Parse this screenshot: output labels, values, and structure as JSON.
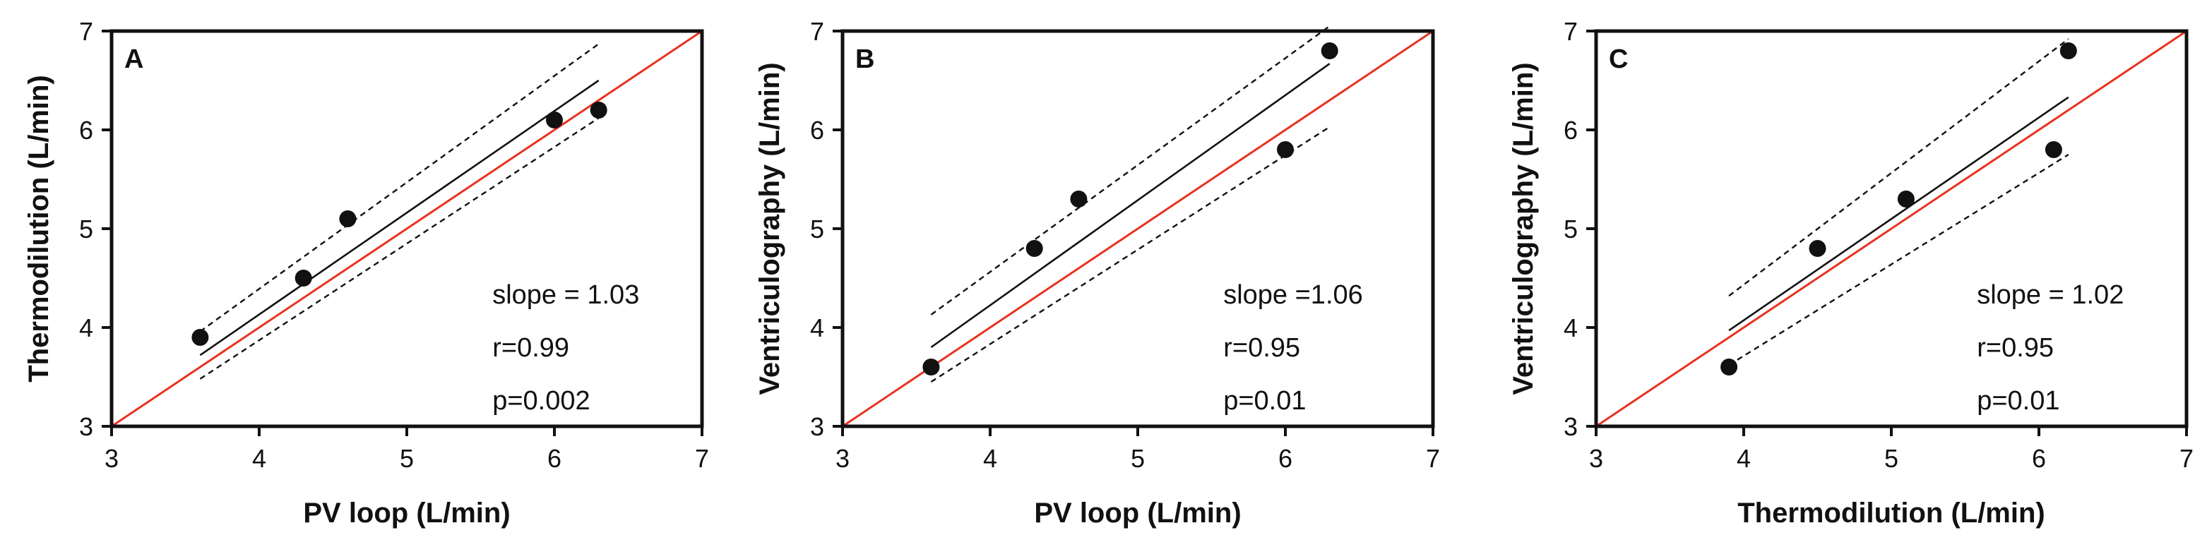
{
  "chart_data": [
    {
      "type": "scatter",
      "panel": "A",
      "xlabel": "PV loop (L/min)",
      "ylabel": "Thermodilution (L/min)",
      "xlim": [
        3,
        7
      ],
      "ylim": [
        3,
        7
      ],
      "xticks": [
        "3",
        "4",
        "5",
        "6",
        "7"
      ],
      "yticks": [
        "3",
        "4",
        "5",
        "6",
        "7"
      ],
      "points": [
        {
          "x": 3.6,
          "y": 3.9
        },
        {
          "x": 4.3,
          "y": 4.5
        },
        {
          "x": 4.6,
          "y": 5.1
        },
        {
          "x": 6.0,
          "y": 6.1
        },
        {
          "x": 6.3,
          "y": 6.2
        }
      ],
      "regression": {
        "x0": 3.6,
        "y0": 3.72,
        "x1": 6.3,
        "y1": 6.5
      },
      "ci_upper": {
        "x0": 3.6,
        "y0": 3.96,
        "x1": 6.3,
        "y1": 6.87
      },
      "ci_lower": {
        "x0": 3.6,
        "y0": 3.48,
        "x1": 6.3,
        "y1": 6.12
      },
      "identity": {
        "x0": 3,
        "y0": 3,
        "x1": 7,
        "y1": 7
      },
      "annotations": [
        "slope = 1.03",
        "r=0.99",
        "p=0.002"
      ]
    },
    {
      "type": "scatter",
      "panel": "B",
      "xlabel": "PV loop (L/min)",
      "ylabel": "Ventriculography (L/min)",
      "xlim": [
        3,
        7
      ],
      "ylim": [
        3,
        7
      ],
      "xticks": [
        "3",
        "4",
        "5",
        "6",
        "7"
      ],
      "yticks": [
        "3",
        "4",
        "5",
        "6",
        "7"
      ],
      "points": [
        {
          "x": 3.6,
          "y": 3.6
        },
        {
          "x": 4.3,
          "y": 4.8
        },
        {
          "x": 4.6,
          "y": 5.3
        },
        {
          "x": 6.0,
          "y": 5.8
        },
        {
          "x": 6.3,
          "y": 6.8
        }
      ],
      "regression": {
        "x0": 3.6,
        "y0": 3.8,
        "x1": 6.3,
        "y1": 6.67
      },
      "ci_upper": {
        "x0": 3.6,
        "y0": 4.13,
        "x1": 6.3,
        "y1": 7.05
      },
      "ci_lower": {
        "x0": 3.6,
        "y0": 3.45,
        "x1": 6.3,
        "y1": 6.03
      },
      "identity": {
        "x0": 3,
        "y0": 3,
        "x1": 7,
        "y1": 7
      },
      "annotations": [
        "slope =1.06",
        "r=0.95",
        "p=0.01"
      ]
    },
    {
      "type": "scatter",
      "panel": "C",
      "xlabel": "Thermodilution (L/min)",
      "ylabel": "Ventriculography (L/min)",
      "xlim": [
        3,
        7
      ],
      "ylim": [
        3,
        7
      ],
      "xticks": [
        "3",
        "4",
        "5",
        "6",
        "7"
      ],
      "yticks": [
        "3",
        "4",
        "5",
        "6",
        "7"
      ],
      "points": [
        {
          "x": 3.9,
          "y": 3.6
        },
        {
          "x": 4.5,
          "y": 4.8
        },
        {
          "x": 5.1,
          "y": 5.3
        },
        {
          "x": 6.1,
          "y": 5.8
        },
        {
          "x": 6.2,
          "y": 6.8
        }
      ],
      "regression": {
        "x0": 3.9,
        "y0": 3.97,
        "x1": 6.2,
        "y1": 6.33
      },
      "ci_upper": {
        "x0": 3.9,
        "y0": 4.32,
        "x1": 6.2,
        "y1": 6.92
      },
      "ci_lower": {
        "x0": 3.9,
        "y0": 3.62,
        "x1": 6.2,
        "y1": 5.75
      },
      "identity": {
        "x0": 3,
        "y0": 3,
        "x1": 7,
        "y1": 7
      },
      "annotations": [
        "slope = 1.02",
        "r=0.95",
        "p=0.01"
      ]
    }
  ],
  "colors": {
    "identity_line": "#e8321f",
    "regression_line": "#111111",
    "ci_line": "#111111",
    "points": "#111111",
    "axes": "#111111"
  }
}
